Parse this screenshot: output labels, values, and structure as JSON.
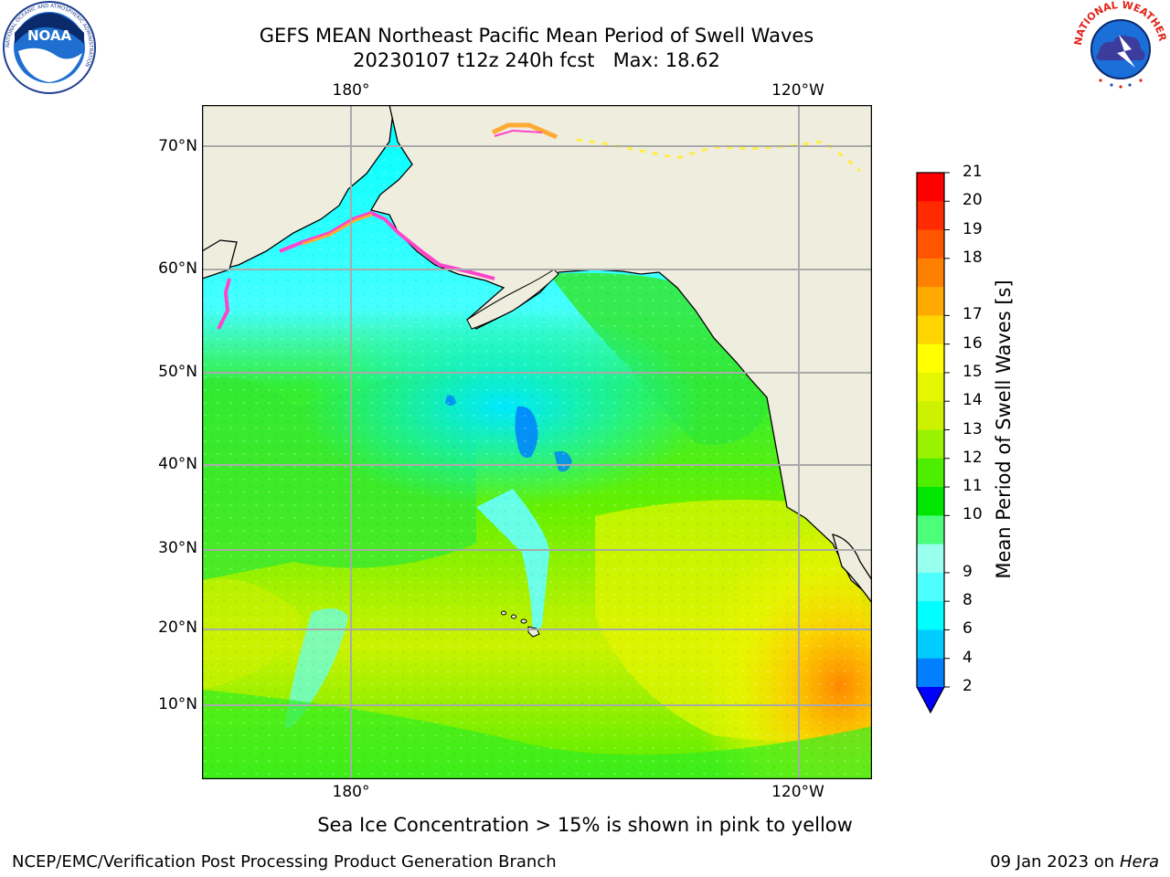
{
  "header": {
    "title_line1": "GEFS MEAN Northeast Pacific Mean Period of Swell Waves",
    "title_line2": "20230107 t12z 240h fcst   Max: 18.62"
  },
  "logos": {
    "noaa_text": "NOAA",
    "nws_text": "NATIONAL WEATHER SERVICE",
    "noaa_ring_text": "NATIONAL OCEANIC AND ATMOSPHERIC ADMINISTRATION"
  },
  "map": {
    "lat_labels": [
      "70°N",
      "60°N",
      "50°N",
      "40°N",
      "30°N",
      "20°N",
      "10°N"
    ],
    "lon_labels_top": [
      "180°",
      "120°W"
    ],
    "lon_labels_bottom": [
      "180°",
      "120°W"
    ],
    "colors": {
      "land": "#efedde",
      "grid": "#aaaaaa",
      "ice_pink": "#ff44cc",
      "ice_orange": "#ffaa33",
      "ice_yellow": "#ffee44"
    }
  },
  "colorbar": {
    "label": "Mean Period of Swell Waves [s]",
    "ticks": [
      "21",
      "20",
      "19",
      "18",
      "17",
      "16",
      "15",
      "14",
      "13",
      "12",
      "11",
      "10",
      "9",
      "8",
      "6",
      "4",
      "2"
    ],
    "colors_top_to_bottom": [
      "#ff0000",
      "#ff2a00",
      "#ff5500",
      "#ff8000",
      "#ffaa00",
      "#ffd500",
      "#ffff00",
      "#e6f500",
      "#ccf200",
      "#99f200",
      "#4dee00",
      "#00e600",
      "#4cff7a",
      "#99ffee",
      "#4dffff",
      "#00ffff",
      "#00ccff",
      "#0080ff"
    ],
    "extend_color": "#0000ff"
  },
  "annotation": "Sea Ice Concentration > 15% is shown in pink to yellow",
  "footer": {
    "left": "NCEP/EMC/Verification Post Processing Product Generation Branch",
    "right_date": "09 Jan 2023 on ",
    "right_host": "Hera"
  }
}
